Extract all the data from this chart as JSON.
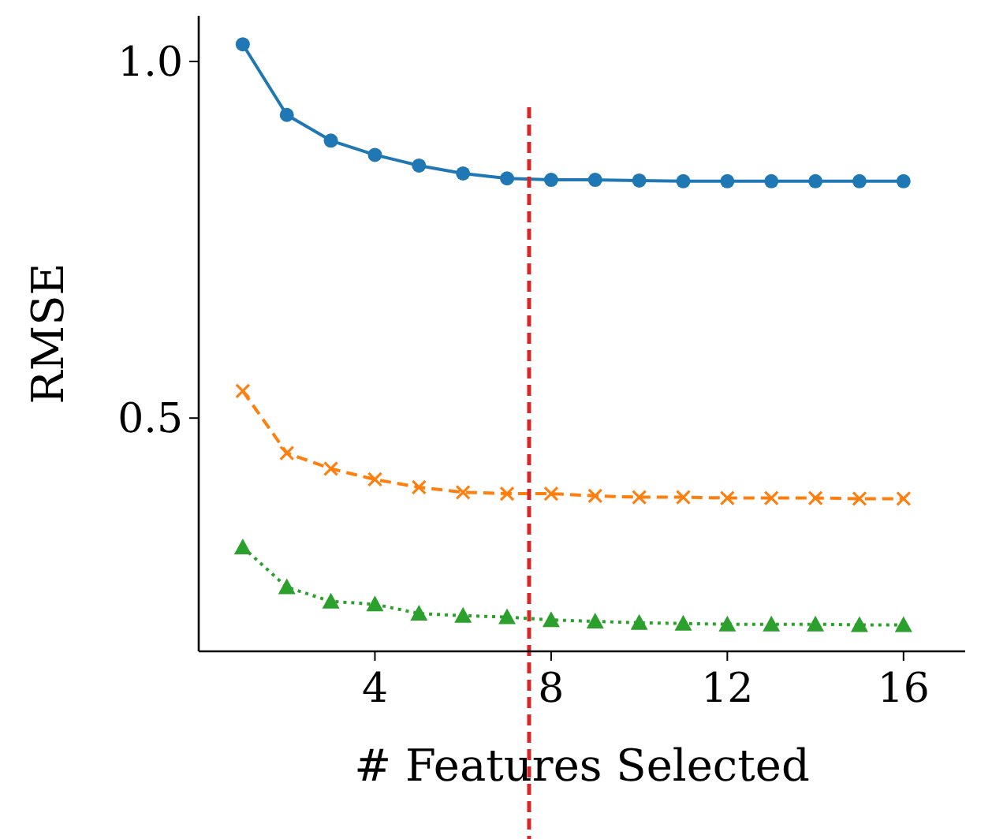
{
  "chart_data": {
    "type": "line",
    "xlabel": "# Features Selected",
    "ylabel": "RMSE",
    "x": [
      1,
      2,
      3,
      4,
      5,
      6,
      7,
      8,
      9,
      10,
      11,
      12,
      13,
      14,
      15,
      16
    ],
    "xlim": [
      0,
      17.4
    ],
    "xticks": [
      4,
      8,
      12,
      16
    ],
    "ylim": [
      0.173,
      1.064
    ],
    "yticks": [
      {
        "value": 0.5,
        "label": "0.5"
      },
      {
        "value": 1.0,
        "label": "1.0"
      }
    ],
    "series": [
      {
        "color": "#1f77b4",
        "marker": "circle",
        "line_style": "solid",
        "values": [
          1.024,
          0.925,
          0.889,
          0.869,
          0.854,
          0.843,
          0.836,
          0.834,
          0.834,
          0.833,
          0.832,
          0.832,
          0.832,
          0.832,
          0.832,
          0.832
        ]
      },
      {
        "color": "#ff7f0e",
        "marker": "cross",
        "line_style": "dashed",
        "values": [
          0.538,
          0.451,
          0.429,
          0.414,
          0.403,
          0.396,
          0.394,
          0.394,
          0.391,
          0.389,
          0.389,
          0.388,
          0.388,
          0.388,
          0.387,
          0.387
        ]
      },
      {
        "color": "#2ca02c",
        "marker": "triangle",
        "line_style": "dotted",
        "values": [
          0.319,
          0.263,
          0.243,
          0.239,
          0.226,
          0.223,
          0.221,
          0.217,
          0.215,
          0.213,
          0.212,
          0.211,
          0.211,
          0.211,
          0.21,
          0.21
        ]
      }
    ],
    "ref_lines": [
      {
        "axis": "x",
        "value": 7.5,
        "color": "#d62728",
        "line_style": "dashed"
      }
    ]
  }
}
